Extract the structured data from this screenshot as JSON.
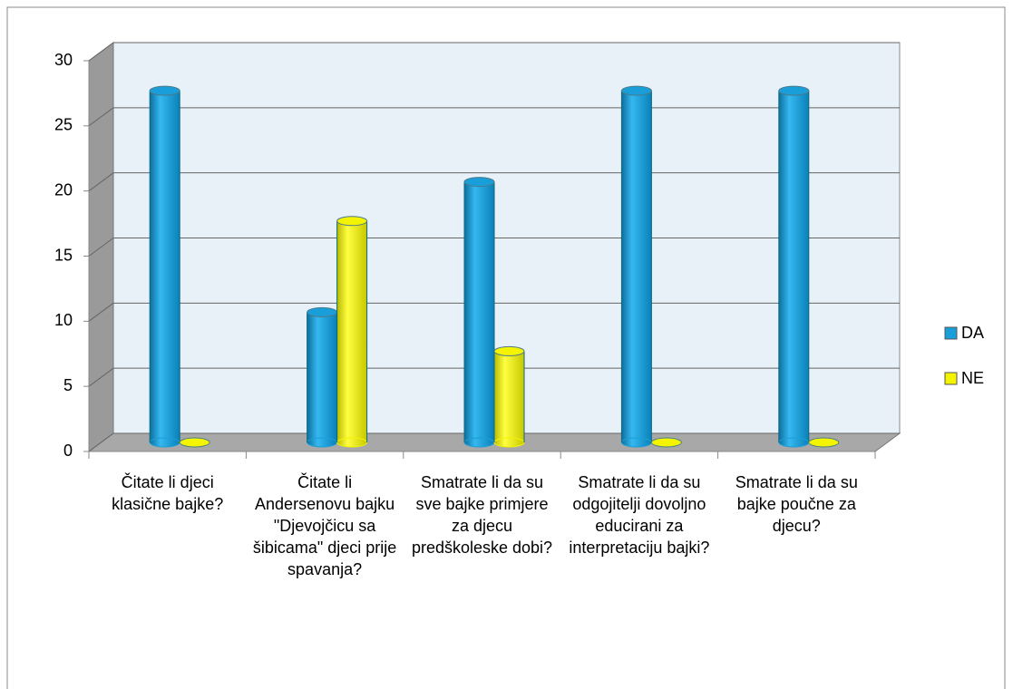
{
  "chart_data": {
    "type": "bar3d",
    "categories": [
      "Čitate li djeci klasične bajke?",
      "Čitate li Andersenovu bajku \"Djevojčicu sa šibicama\" djeci prije spavanja?",
      "Smatrate li da su sve bajke primjere za djecu predškoleske dobi?",
      "Smatrate li da su odgojitelji dovoljno educirani za interpretaciju bajki?",
      "Smatrate li da su bajke poučne za djecu?"
    ],
    "series": [
      {
        "name": "DA",
        "color": "#1a9ed9",
        "values": [
          27,
          10,
          20,
          27,
          27
        ]
      },
      {
        "name": "NE",
        "color": "#f4f400",
        "values": [
          0,
          17,
          7,
          0,
          0
        ]
      }
    ],
    "ylim": [
      0,
      30
    ],
    "yticks": [
      0,
      5,
      10,
      15,
      20,
      25,
      30
    ],
    "grid": true,
    "legend": "right"
  }
}
